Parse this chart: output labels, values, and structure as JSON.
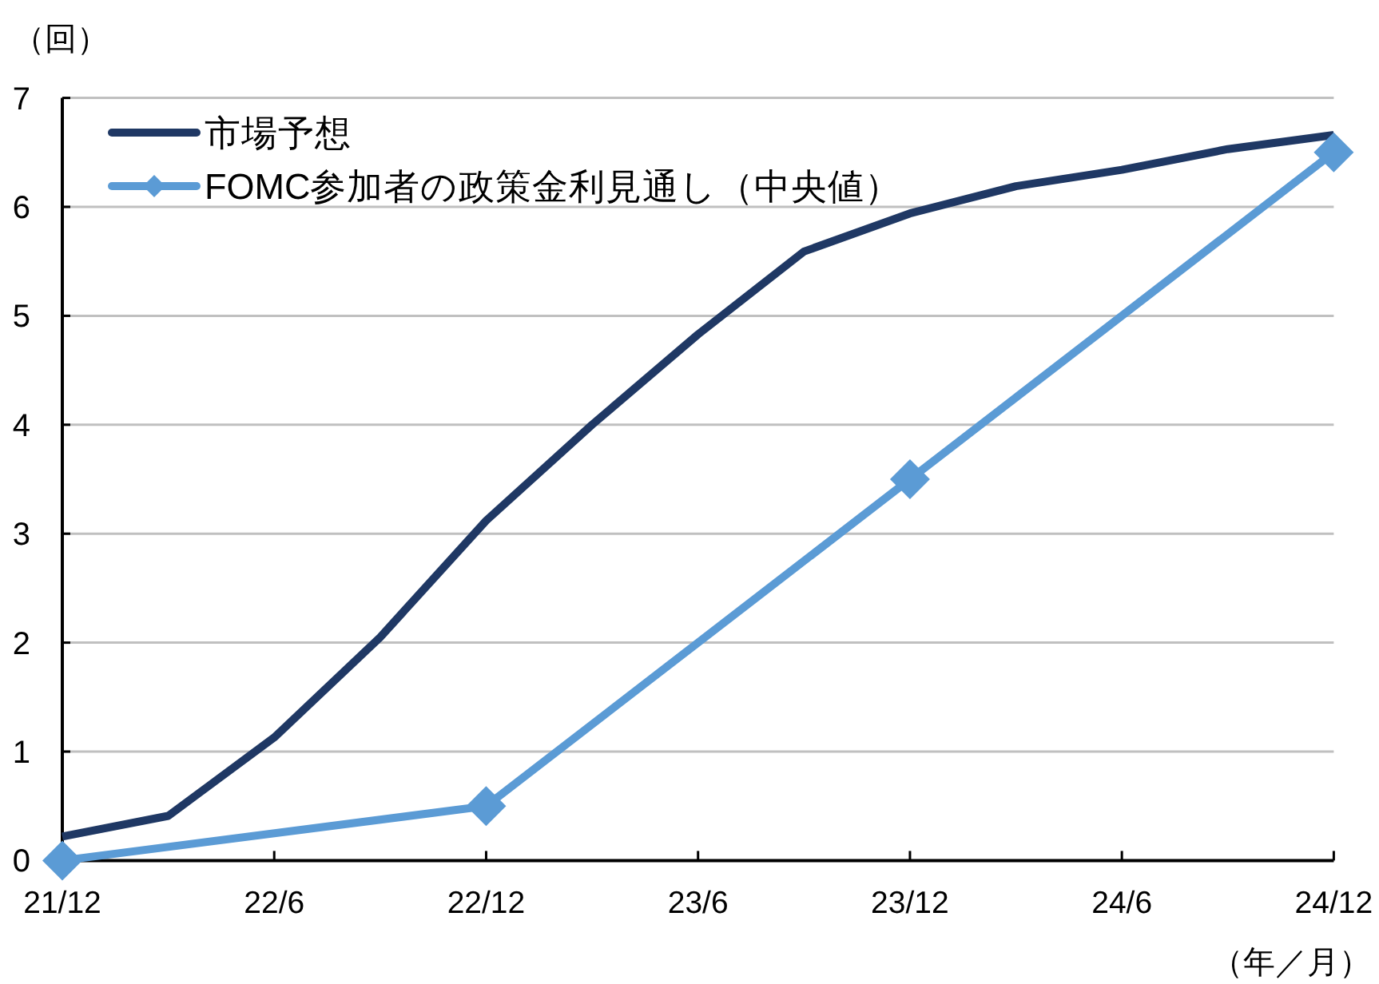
{
  "chart_data": {
    "type": "line",
    "xlabel": "（年／月）",
    "ylabel": "（回）",
    "categories": [
      "21/12",
      null,
      "22/6",
      null,
      "22/12",
      null,
      "23/6",
      null,
      "23/12",
      null,
      "24/6",
      null,
      "24/12"
    ],
    "series": [
      {
        "name": "市場予想",
        "color": "#1f3864",
        "marker": "none",
        "values": [
          0.22,
          0.41,
          1.13,
          2.05,
          3.12,
          4.0,
          4.83,
          5.59,
          5.94,
          6.19,
          6.34,
          6.53,
          6.66
        ]
      },
      {
        "name": "FOMC参加者の政策金利見通し（中央値）",
        "color": "#5b9bd5",
        "marker": "diamond",
        "x": [
          "21/12",
          "22/12",
          "23/12",
          "24/12"
        ],
        "values": [
          0,
          0.5,
          3.5,
          6.5
        ]
      }
    ],
    "ylim": [
      0,
      7
    ],
    "yticks": [
      0,
      1,
      2,
      3,
      4,
      5,
      6,
      7
    ],
    "grid": "y",
    "legend": "top left",
    "line_style": "solid"
  }
}
